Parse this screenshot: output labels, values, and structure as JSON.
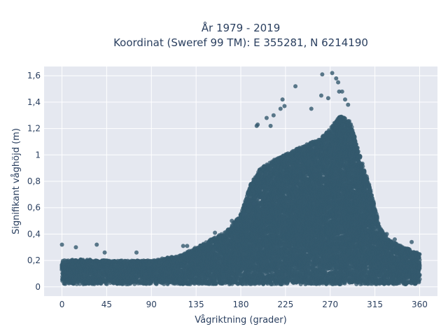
{
  "chart_data": {
    "type": "scatter",
    "title_line1": "År 1979 - 2019",
    "title_line2": "Koordinat (Sweref 99 TM): E 355281, N 6214190",
    "xlabel": "Vågriktning (grader)",
    "ylabel": "Signifikant våghöjd (m)",
    "xlim": [
      -18,
      378
    ],
    "ylim": [
      -0.07,
      1.67
    ],
    "xticks": [
      0,
      45,
      90,
      135,
      180,
      225,
      270,
      315,
      360
    ],
    "xtick_labels": [
      "0",
      "45",
      "90",
      "135",
      "180",
      "225",
      "270",
      "315",
      "360"
    ],
    "yticks": [
      0,
      0.2,
      0.4,
      0.6,
      0.8,
      1.0,
      1.2,
      1.4,
      1.6
    ],
    "ytick_labels": [
      "0",
      "0,2",
      "0,4",
      "0,6",
      "0,8",
      "1",
      "1,2",
      "1,4",
      "1,6"
    ],
    "grid": true,
    "marker_color": "#34596e",
    "plot_background": "#e5e8f0",
    "upper_envelope": {
      "x": [
        0,
        20,
        45,
        90,
        120,
        135,
        150,
        165,
        180,
        190,
        200,
        215,
        230,
        245,
        260,
        270,
        280,
        290,
        300,
        310,
        320,
        330,
        345,
        360
      ],
      "y": [
        0.2,
        0.21,
        0.2,
        0.2,
        0.24,
        0.3,
        0.36,
        0.42,
        0.55,
        0.78,
        0.9,
        0.97,
        1.02,
        1.08,
        1.12,
        1.2,
        1.3,
        1.25,
        1.0,
        0.75,
        0.45,
        0.35,
        0.3,
        0.25
      ]
    },
    "outliers": [
      {
        "x": 0,
        "y": 0.32
      },
      {
        "x": 14,
        "y": 0.3
      },
      {
        "x": 35,
        "y": 0.32
      },
      {
        "x": 43,
        "y": 0.26
      },
      {
        "x": 75,
        "y": 0.26
      },
      {
        "x": 122,
        "y": 0.31
      },
      {
        "x": 126,
        "y": 0.31
      },
      {
        "x": 154,
        "y": 0.41
      },
      {
        "x": 171,
        "y": 0.5
      },
      {
        "x": 183,
        "y": 0.55
      },
      {
        "x": 193,
        "y": 0.63
      },
      {
        "x": 196,
        "y": 1.22
      },
      {
        "x": 197,
        "y": 1.23
      },
      {
        "x": 206,
        "y": 1.28
      },
      {
        "x": 210,
        "y": 1.22
      },
      {
        "x": 213,
        "y": 1.3
      },
      {
        "x": 220,
        "y": 1.35
      },
      {
        "x": 222,
        "y": 1.42
      },
      {
        "x": 224,
        "y": 1.37
      },
      {
        "x": 235,
        "y": 1.52
      },
      {
        "x": 251,
        "y": 1.35
      },
      {
        "x": 261,
        "y": 1.45
      },
      {
        "x": 262,
        "y": 1.61
      },
      {
        "x": 268,
        "y": 1.43
      },
      {
        "x": 272,
        "y": 1.62
      },
      {
        "x": 276,
        "y": 1.58
      },
      {
        "x": 278,
        "y": 1.55
      },
      {
        "x": 279,
        "y": 1.48
      },
      {
        "x": 282,
        "y": 1.48
      },
      {
        "x": 285,
        "y": 1.42
      },
      {
        "x": 288,
        "y": 1.38
      },
      {
        "x": 327,
        "y": 0.4
      },
      {
        "x": 335,
        "y": 0.36
      },
      {
        "x": 352,
        "y": 0.34
      }
    ]
  }
}
